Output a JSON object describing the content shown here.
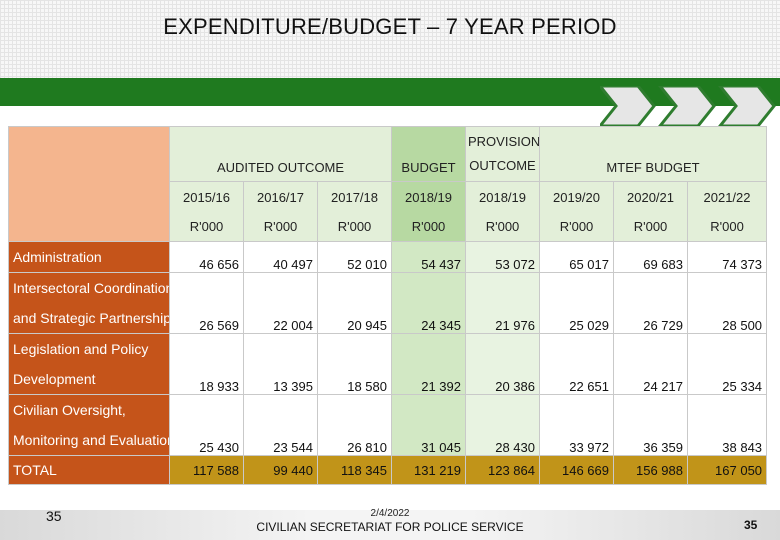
{
  "title": "EXPENDITURE/BUDGET – 7 YEAR PERIOD",
  "colors": {
    "green_bar": "#1f7a1f",
    "row_label_bg": "#c5541a",
    "total_bg": "#c19419",
    "header_bg": "#e3efd9",
    "budget_col_bg": "#b7d9a2"
  },
  "table": {
    "groups": {
      "audited": "AUDITED OUTCOME",
      "budget": "BUDGET",
      "provisional": "PROVISIONAL OUTCOME",
      "mtef": "MTEF BUDGET"
    },
    "years": [
      "2015/16",
      "2016/17",
      "2017/18",
      "2018/19",
      "2018/19",
      "2019/20",
      "2020/21",
      "2021/22"
    ],
    "unit": "R'000",
    "rows": [
      {
        "label_lines": [
          "Administration"
        ],
        "values": [
          "46 656",
          "40 497",
          "52 010",
          "54 437",
          "53 072",
          "65 017",
          "69 683",
          "74 373"
        ]
      },
      {
        "label_lines": [
          "Intersectoral Coordination",
          "and Strategic Partnerships"
        ],
        "values": [
          "26 569",
          "22 004",
          "20 945",
          "24 345",
          "21 976",
          "25 029",
          "26 729",
          "28 500"
        ]
      },
      {
        "label_lines": [
          "Legislation and Policy",
          "Development"
        ],
        "values": [
          "18 933",
          "13 395",
          "18 580",
          "21 392",
          "20 386",
          "22 651",
          "24 217",
          "25 334"
        ]
      },
      {
        "label_lines": [
          "Civilian Oversight,",
          "Monitoring and Evaluation"
        ],
        "values": [
          "25 430",
          "23 544",
          "26 810",
          "31 045",
          "28 430",
          "33 972",
          "36 359",
          "38 843"
        ]
      }
    ],
    "total": {
      "label": "TOTAL",
      "values": [
        "117 588",
        "99 440",
        "118 345",
        "131 219",
        "123 864",
        "146 669",
        "156 988",
        "167 050"
      ]
    }
  },
  "footer": {
    "left_number": "35",
    "date": "2/4/2022",
    "organization": "CIVILIAN SECRETARIAT FOR POLICE SERVICE",
    "right_number": "35"
  }
}
